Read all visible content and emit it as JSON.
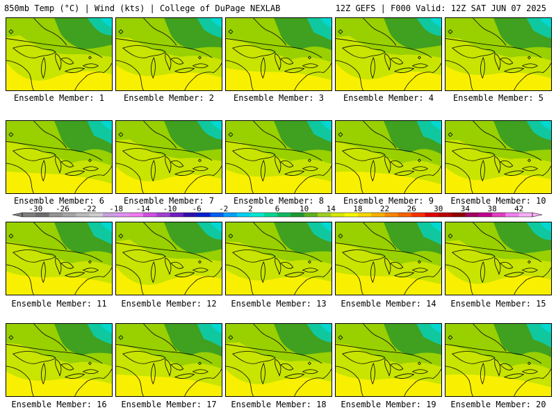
{
  "header": {
    "left": "850mb Temp (°C) | Wind (kts) | College of DuPage NEXLAB",
    "right": "12Z GEFS | F000 Valid: 12Z SAT JUN 07 2025"
  },
  "member_label_prefix": "Ensemble Member: ",
  "members": [
    {
      "label": "Ensemble Member: 1"
    },
    {
      "label": "Ensemble Member: 2"
    },
    {
      "label": "Ensemble Member: 3"
    },
    {
      "label": "Ensemble Member: 4"
    },
    {
      "label": "Ensemble Member: 5"
    },
    {
      "label": "Ensemble Member: 6"
    },
    {
      "label": "Ensemble Member: 7"
    },
    {
      "label": "Ensemble Member: 8"
    },
    {
      "label": "Ensemble Member: 9"
    },
    {
      "label": "Ensemble Member: 10"
    },
    {
      "label": "Ensemble Member: 11"
    },
    {
      "label": "Ensemble Member: 12"
    },
    {
      "label": "Ensemble Member: 13"
    },
    {
      "label": "Ensemble Member: 14"
    },
    {
      "label": "Ensemble Member: 15"
    },
    {
      "label": "Ensemble Member: 16"
    },
    {
      "label": "Ensemble Member: 17"
    },
    {
      "label": "Ensemble Member: 18"
    },
    {
      "label": "Ensemble Member: 19"
    },
    {
      "label": "Ensemble Member: 20"
    }
  ],
  "colorbar": {
    "tick_labels": [
      "-30",
      "-26",
      "-22",
      "-18",
      "-14",
      "-10",
      "-6",
      "-2",
      "2",
      "6",
      "10",
      "14",
      "18",
      "22",
      "26",
      "30",
      "34",
      "38",
      "42"
    ],
    "min": -32,
    "max": 44,
    "step": 2,
    "colors": [
      "#7f7f7f",
      "#6e6e6e",
      "#949494",
      "#a6a6a6",
      "#bbbbbb",
      "#cfcfcf",
      "#c8a0e0",
      "#e090f0",
      "#f07af0",
      "#d050e0",
      "#a040d0",
      "#7020c0",
      "#3010b0",
      "#0020d0",
      "#0060f0",
      "#00a0ff",
      "#00d0f0",
      "#00e8d0",
      "#00d890",
      "#10b860",
      "#209830",
      "#60b020",
      "#a0d020",
      "#d8e800",
      "#f8f800",
      "#f8d800",
      "#f8b000",
      "#f88800",
      "#f86000",
      "#f83000",
      "#e00000",
      "#b80000",
      "#900000",
      "#a00060",
      "#c00090",
      "#e040c0",
      "#f080f0",
      "#f8b0f8"
    ]
  },
  "field_colors": {
    "warm": "#f8f000",
    "mild": "#c8e400",
    "moderate": "#98d000",
    "cool": "#40a020",
    "cold": "#10c8a0",
    "coldest": "#00d8d0"
  }
}
